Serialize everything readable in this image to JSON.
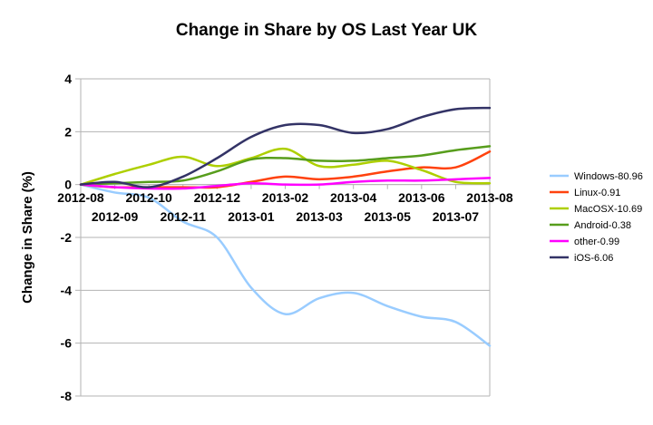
{
  "chart_data": {
    "type": "line",
    "title": "Change in Share by OS Last Year UK",
    "xlabel": "",
    "ylabel": "Change in Share (%)",
    "ylim": [
      -8,
      4
    ],
    "yticks": [
      4,
      2,
      0,
      -2,
      -4,
      -6,
      -8
    ],
    "grid": "horizontal",
    "legend_position": "right",
    "x": [
      "2012-08",
      "2012-09",
      "2012-10",
      "2012-11",
      "2012-12",
      "2013-01",
      "2013-02",
      "2013-03",
      "2013-04",
      "2013-05",
      "2013-06",
      "2013-07",
      "2013-08"
    ],
    "series": [
      {
        "name": "Windows-80.96",
        "color": "#99ccff",
        "values": [
          0,
          -0.3,
          -0.5,
          -1.4,
          -2.0,
          -3.9,
          -4.9,
          -4.3,
          -4.1,
          -4.6,
          -5.0,
          -5.2,
          -6.1
        ]
      },
      {
        "name": "Linux-0.91",
        "color": "#ff420e",
        "values": [
          0,
          -0.1,
          -0.1,
          -0.1,
          -0.1,
          0.1,
          0.3,
          0.2,
          0.3,
          0.5,
          0.65,
          0.65,
          1.25
        ]
      },
      {
        "name": "MacOSX-10.69",
        "color": "#aecf00",
        "values": [
          0,
          0.4,
          0.75,
          1.05,
          0.7,
          1.0,
          1.35,
          0.7,
          0.75,
          0.9,
          0.55,
          0.1,
          0.05
        ]
      },
      {
        "name": "Android-0.38",
        "color": "#579d1c",
        "values": [
          0,
          0.05,
          0.1,
          0.15,
          0.5,
          0.95,
          1.0,
          0.9,
          0.9,
          1.0,
          1.1,
          1.3,
          1.45
        ]
      },
      {
        "name": "other-0.99",
        "color": "#ff00ff",
        "values": [
          0,
          -0.1,
          -0.15,
          -0.15,
          -0.05,
          0.05,
          0.0,
          0.0,
          0.1,
          0.15,
          0.15,
          0.2,
          0.25
        ]
      },
      {
        "name": "iOS-6.06",
        "color": "#333366",
        "values": [
          0,
          0.1,
          -0.1,
          0.3,
          1.0,
          1.8,
          2.25,
          2.25,
          1.95,
          2.1,
          2.55,
          2.85,
          2.9
        ]
      }
    ]
  }
}
